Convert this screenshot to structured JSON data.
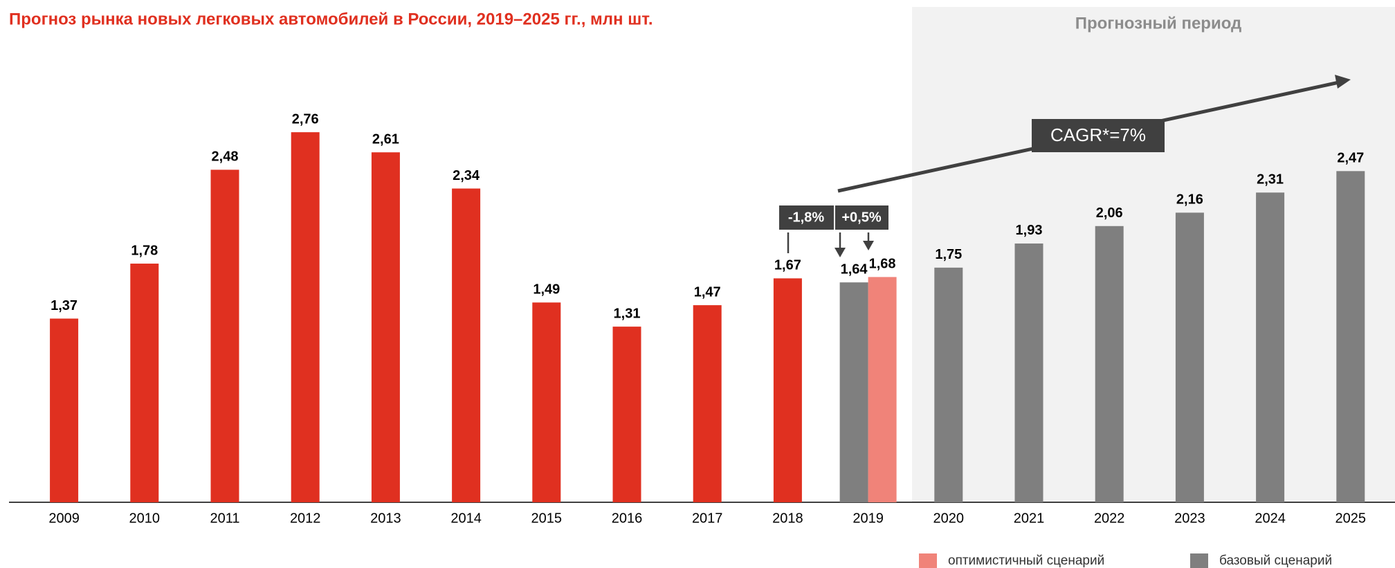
{
  "chart_data": {
    "type": "bar",
    "title": "Прогноз рынка новых легковых автомобилей в России, 2019–2025 гг., млн шт.",
    "forecast_label": "Прогнозный период",
    "annotations": [
      "-1,8%",
      "+0,5%",
      "CAGR*=7%"
    ],
    "categories": [
      "2009",
      "2010",
      "2011",
      "2012",
      "2013",
      "2014",
      "2015",
      "2016",
      "2017",
      "2018",
      "2019",
      "2020",
      "2021",
      "2022",
      "2023",
      "2024",
      "2025"
    ],
    "series": [
      {
        "color": "#e03020",
        "values": [
          1.37,
          1.78,
          2.48,
          2.76,
          2.61,
          2.34,
          1.49,
          1.31,
          1.47,
          1.67,
          null,
          null,
          null,
          null,
          null,
          null,
          null
        ],
        "value_labels": [
          "1,37",
          "1,78",
          "2,48",
          "2,76",
          "2,61",
          "2,34",
          "1,49",
          "1,31",
          "1,47",
          "1,67",
          null,
          null,
          null,
          null,
          null,
          null,
          null
        ]
      },
      {
        "name": "базовый сценарий",
        "color": "#7f7f7f",
        "values": [
          null,
          null,
          null,
          null,
          null,
          null,
          null,
          null,
          null,
          null,
          1.64,
          1.75,
          1.93,
          2.06,
          2.16,
          2.31,
          2.47
        ],
        "value_labels": [
          null,
          null,
          null,
          null,
          null,
          null,
          null,
          null,
          null,
          null,
          "1,64",
          "1,75",
          "1,93",
          "2,06",
          "2,16",
          "2,31",
          "2,47"
        ]
      },
      {
        "name": "оптимистичный сценарий",
        "color": "#f08379",
        "values": [
          null,
          null,
          null,
          null,
          null,
          null,
          null,
          null,
          null,
          null,
          1.68,
          null,
          null,
          null,
          null,
          null,
          null
        ],
        "value_labels": [
          null,
          null,
          null,
          null,
          null,
          null,
          null,
          null,
          null,
          null,
          "1,68",
          null,
          null,
          null,
          null,
          null,
          null
        ]
      }
    ]
  }
}
